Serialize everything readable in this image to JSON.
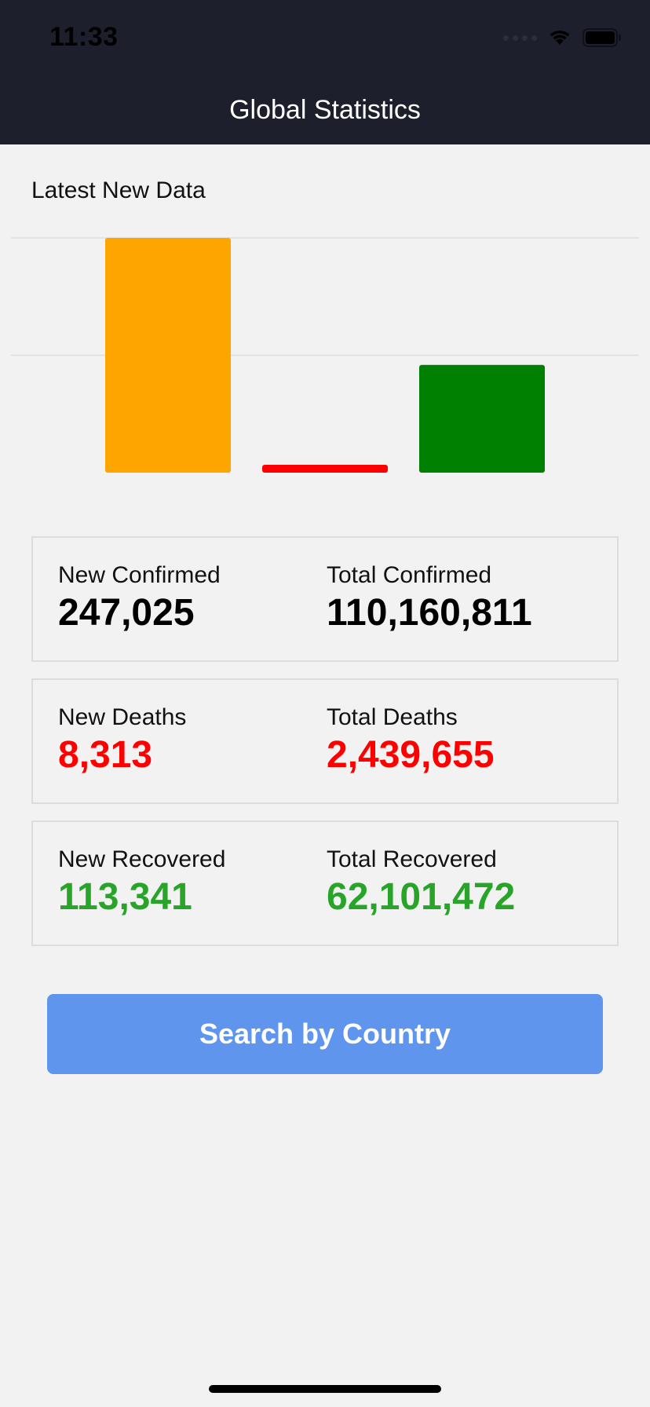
{
  "status_bar": {
    "time": "11:33"
  },
  "nav": {
    "title": "Global Statistics"
  },
  "section": {
    "label": "Latest New Data"
  },
  "chart_data": {
    "type": "bar",
    "categories": [
      "New Confirmed",
      "New Deaths",
      "New Recovered"
    ],
    "values": [
      247025,
      8313,
      113341
    ],
    "colors": [
      "#ffa500",
      "#ff0000",
      "#008000"
    ],
    "ylim": [
      0,
      247025
    ],
    "grid": true,
    "title": "",
    "xlabel": "",
    "ylabel": ""
  },
  "stats": {
    "confirmed": {
      "new_label": "New Confirmed",
      "new_value": "247,025",
      "total_label": "Total Confirmed",
      "total_value": "110,160,811",
      "color": "#000000"
    },
    "deaths": {
      "new_label": "New Deaths",
      "new_value": "8,313",
      "total_label": "Total Deaths",
      "total_value": "2,439,655",
      "color": "#ff0000"
    },
    "recovered": {
      "new_label": "New Recovered",
      "new_value": "113,341",
      "total_label": "Total Recovered",
      "total_value": "62,101,472",
      "color": "#28a428"
    }
  },
  "search_button": {
    "label": "Search by Country",
    "color": "#5f95ec"
  }
}
